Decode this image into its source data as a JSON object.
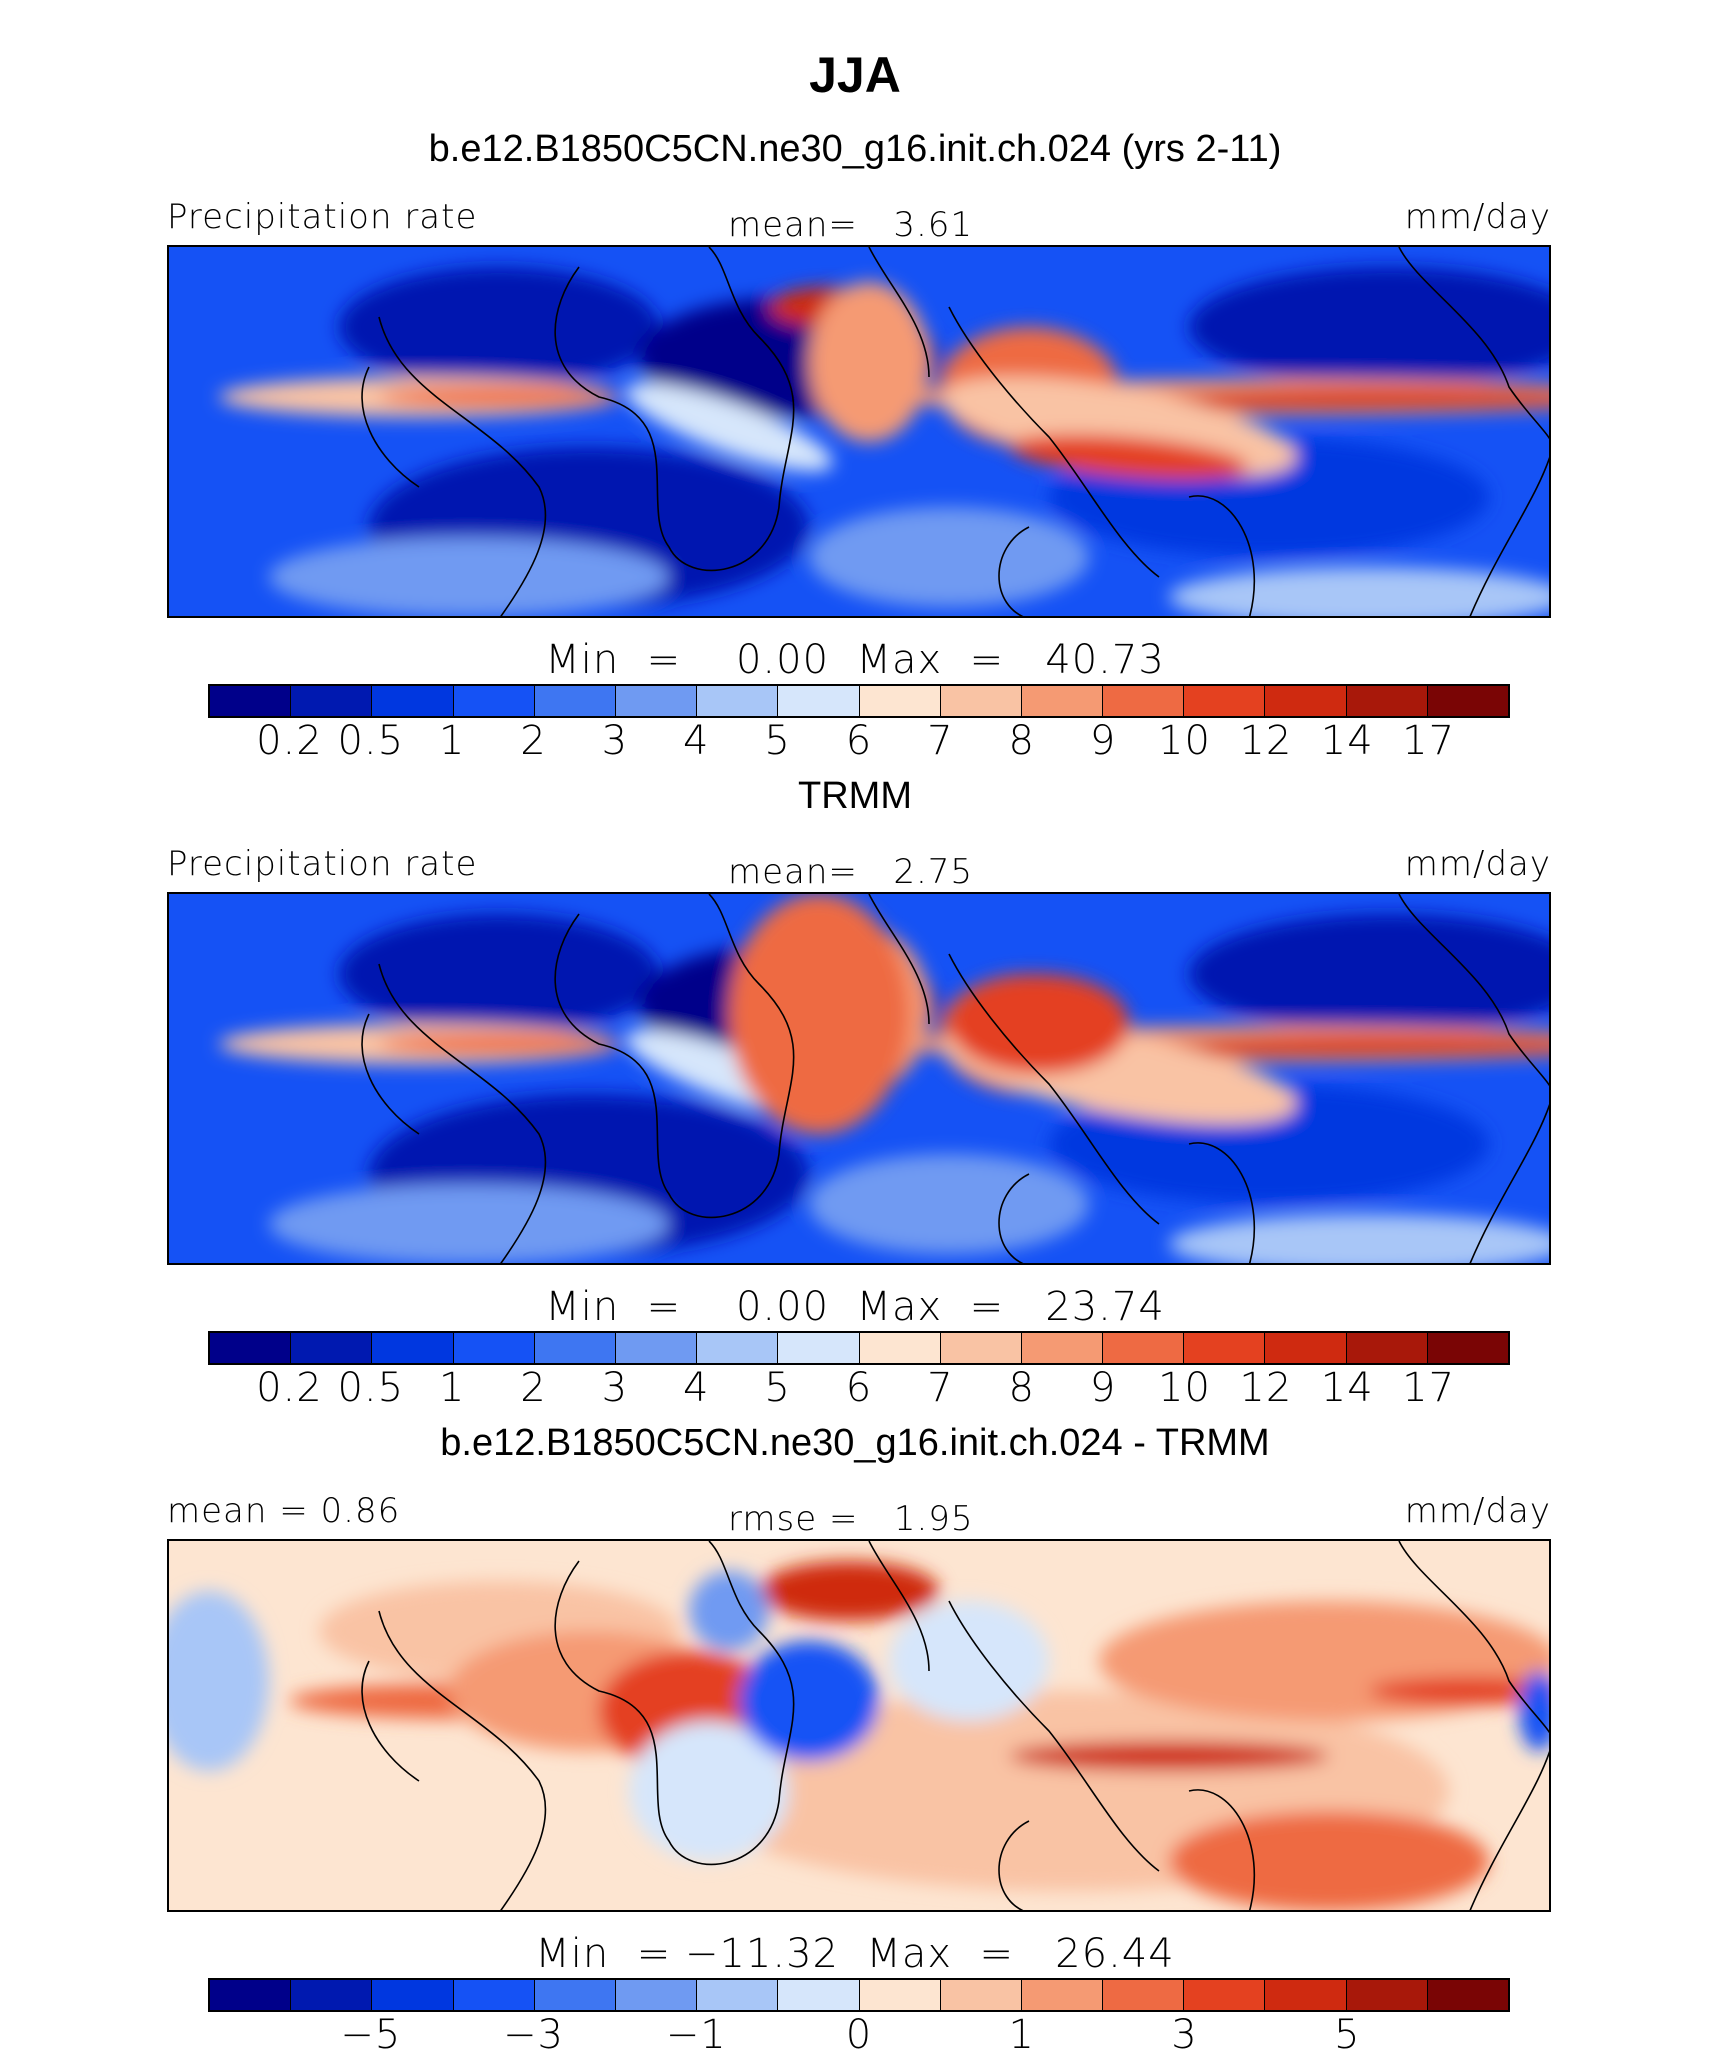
{
  "chart_data": {
    "type": "heatmap",
    "title": "JJA",
    "units": "mm/day",
    "panels": [
      {
        "id": "model",
        "title": "b.e12.B1850C5CN.ne30_g16.init.ch.024 (yrs 2-11)",
        "left_label": "Precipitation rate",
        "center_label": "mean=   3.61",
        "right_label": "mm/day",
        "stats": "Min  =    0.00  Max  =   40.73",
        "mean": 3.61,
        "min": 0.0,
        "max": 40.73,
        "colorbar_labels": [
          "0.2",
          "0.5",
          "1",
          "2",
          "3",
          "4",
          "5",
          "6",
          "7",
          "8",
          "9",
          "10",
          "12",
          "14",
          "17"
        ]
      },
      {
        "id": "obs",
        "title": "TRMM",
        "left_label": "Precipitation rate",
        "center_label": "mean=   2.75",
        "right_label": "mm/day",
        "stats": "Min  =    0.00  Max  =   23.74",
        "mean": 2.75,
        "min": 0.0,
        "max": 23.74,
        "colorbar_labels": [
          "0.2",
          "0.5",
          "1",
          "2",
          "3",
          "4",
          "5",
          "6",
          "7",
          "8",
          "9",
          "10",
          "12",
          "14",
          "17"
        ]
      },
      {
        "id": "diff",
        "title": "b.e12.B1850C5CN.ne30_g16.init.ch.024 - TRMM",
        "left_label": "mean =   0.86",
        "center_label": "rmse =   1.95",
        "right_label": "mm/day",
        "stats": "Min  = −11.32  Max  =   26.44",
        "mean": 0.86,
        "rmse": 1.95,
        "min": -11.32,
        "max": 26.44,
        "colorbar_labels": [
          "−5",
          "−3",
          "−1",
          "0",
          "1",
          "3",
          "5"
        ]
      }
    ],
    "colormap": [
      "#00008a",
      "#0019b0",
      "#0037e0",
      "#1552f5",
      "#3e76f2",
      "#6f9af2",
      "#a8c6f7",
      "#d6e6fb",
      "#fde5d1",
      "#f9c3a4",
      "#f59a73",
      "#ee6a43",
      "#e44120",
      "#cf2a10",
      "#a8180a",
      "#7a0505"
    ]
  }
}
